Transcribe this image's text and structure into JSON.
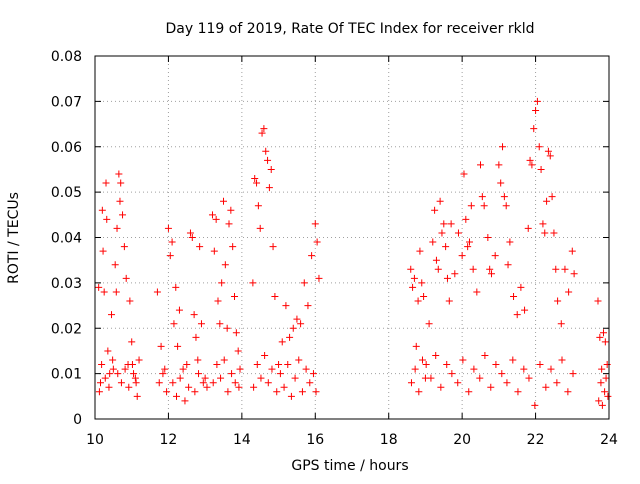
{
  "chart_data": {
    "type": "scatter",
    "title": "Day 119 of 2019, Rate Of TEC Index for receiver rkld",
    "xlabel": "GPS time / hours",
    "ylabel": "ROTI / TECUs",
    "xlim": [
      10,
      24
    ],
    "ylim": [
      0,
      0.08
    ],
    "x_ticks": [
      10,
      12,
      14,
      16,
      18,
      20,
      22,
      24
    ],
    "y_ticks": [
      0,
      0.01,
      0.02,
      0.03,
      0.04,
      0.05,
      0.06,
      0.07,
      0.08
    ],
    "x_tick_labels": [
      "10",
      "12",
      "14",
      "16",
      "18",
      "20",
      "22",
      "24"
    ],
    "y_tick_labels": [
      "0",
      "0.01",
      "0.02",
      "0.03",
      "0.04",
      "0.05",
      "0.06",
      "0.07",
      "0.08"
    ],
    "grid": true,
    "marker": "+",
    "series": [
      {
        "name": "ROTI",
        "color": "#ff0000",
        "points": [
          [
            10.1,
            0.029
          ],
          [
            10.15,
            0.008
          ],
          [
            10.2,
            0.046
          ],
          [
            10.22,
            0.037
          ],
          [
            10.25,
            0.028
          ],
          [
            10.3,
            0.052
          ],
          [
            10.32,
            0.044
          ],
          [
            10.35,
            0.015
          ],
          [
            10.4,
            0.01
          ],
          [
            10.45,
            0.023
          ],
          [
            10.5,
            0.011
          ],
          [
            10.55,
            0.034
          ],
          [
            10.58,
            0.028
          ],
          [
            10.6,
            0.042
          ],
          [
            10.65,
            0.054
          ],
          [
            10.68,
            0.048
          ],
          [
            10.7,
            0.052
          ],
          [
            10.75,
            0.045
          ],
          [
            10.8,
            0.038
          ],
          [
            10.85,
            0.031
          ],
          [
            10.9,
            0.012
          ],
          [
            10.95,
            0.026
          ],
          [
            11.0,
            0.017
          ],
          [
            11.05,
            0.01
          ],
          [
            11.1,
            0.009
          ],
          [
            11.15,
            0.005
          ],
          [
            11.2,
            0.013
          ],
          [
            10.12,
            0.006
          ],
          [
            10.18,
            0.012
          ],
          [
            10.28,
            0.009
          ],
          [
            10.38,
            0.007
          ],
          [
            10.48,
            0.013
          ],
          [
            10.62,
            0.01
          ],
          [
            10.72,
            0.008
          ],
          [
            10.82,
            0.011
          ],
          [
            10.92,
            0.007
          ],
          [
            11.02,
            0.012
          ],
          [
            11.12,
            0.008
          ],
          [
            11.7,
            0.028
          ],
          [
            11.8,
            0.016
          ],
          [
            11.9,
            0.011
          ],
          [
            12.0,
            0.042
          ],
          [
            12.05,
            0.036
          ],
          [
            12.1,
            0.039
          ],
          [
            12.15,
            0.021
          ],
          [
            12.2,
            0.029
          ],
          [
            12.25,
            0.016
          ],
          [
            12.3,
            0.024
          ],
          [
            12.4,
            0.011
          ],
          [
            12.5,
            0.012
          ],
          [
            12.6,
            0.041
          ],
          [
            12.65,
            0.04
          ],
          [
            12.7,
            0.023
          ],
          [
            12.75,
            0.018
          ],
          [
            12.8,
            0.013
          ],
          [
            12.85,
            0.038
          ],
          [
            12.9,
            0.021
          ],
          [
            13.0,
            0.009
          ],
          [
            13.05,
            0.007
          ],
          [
            11.75,
            0.008
          ],
          [
            11.85,
            0.01
          ],
          [
            11.95,
            0.006
          ],
          [
            12.12,
            0.008
          ],
          [
            12.22,
            0.005
          ],
          [
            12.32,
            0.009
          ],
          [
            12.45,
            0.004
          ],
          [
            12.55,
            0.007
          ],
          [
            12.72,
            0.006
          ],
          [
            12.82,
            0.01
          ],
          [
            12.95,
            0.008
          ],
          [
            13.2,
            0.045
          ],
          [
            13.25,
            0.037
          ],
          [
            13.3,
            0.044
          ],
          [
            13.35,
            0.026
          ],
          [
            13.4,
            0.021
          ],
          [
            13.45,
            0.03
          ],
          [
            13.5,
            0.048
          ],
          [
            13.55,
            0.034
          ],
          [
            13.6,
            0.02
          ],
          [
            13.65,
            0.043
          ],
          [
            13.7,
            0.046
          ],
          [
            13.75,
            0.038
          ],
          [
            13.8,
            0.027
          ],
          [
            13.85,
            0.019
          ],
          [
            13.9,
            0.015
          ],
          [
            13.95,
            0.011
          ],
          [
            13.22,
            0.008
          ],
          [
            13.32,
            0.012
          ],
          [
            13.42,
            0.009
          ],
          [
            13.52,
            0.013
          ],
          [
            13.62,
            0.006
          ],
          [
            13.72,
            0.01
          ],
          [
            13.82,
            0.008
          ],
          [
            13.92,
            0.007
          ],
          [
            14.3,
            0.03
          ],
          [
            14.35,
            0.053
          ],
          [
            14.4,
            0.052
          ],
          [
            14.45,
            0.047
          ],
          [
            14.5,
            0.042
          ],
          [
            14.55,
            0.063
          ],
          [
            14.6,
            0.064
          ],
          [
            14.65,
            0.059
          ],
          [
            14.7,
            0.057
          ],
          [
            14.75,
            0.051
          ],
          [
            14.8,
            0.055
          ],
          [
            14.85,
            0.038
          ],
          [
            14.9,
            0.027
          ],
          [
            15.0,
            0.012
          ],
          [
            15.1,
            0.017
          ],
          [
            15.2,
            0.025
          ],
          [
            15.3,
            0.018
          ],
          [
            15.4,
            0.02
          ],
          [
            15.5,
            0.022
          ],
          [
            15.6,
            0.021
          ],
          [
            15.7,
            0.03
          ],
          [
            15.8,
            0.025
          ],
          [
            15.9,
            0.036
          ],
          [
            16.0,
            0.043
          ],
          [
            16.05,
            0.039
          ],
          [
            16.1,
            0.031
          ],
          [
            14.32,
            0.007
          ],
          [
            14.42,
            0.012
          ],
          [
            14.52,
            0.009
          ],
          [
            14.62,
            0.014
          ],
          [
            14.72,
            0.008
          ],
          [
            14.82,
            0.011
          ],
          [
            14.95,
            0.006
          ],
          [
            15.05,
            0.01
          ],
          [
            15.15,
            0.007
          ],
          [
            15.25,
            0.012
          ],
          [
            15.35,
            0.005
          ],
          [
            15.45,
            0.009
          ],
          [
            15.55,
            0.013
          ],
          [
            15.65,
            0.006
          ],
          [
            15.75,
            0.011
          ],
          [
            15.85,
            0.008
          ],
          [
            15.95,
            0.01
          ],
          [
            16.02,
            0.006
          ],
          [
            18.6,
            0.033
          ],
          [
            18.65,
            0.029
          ],
          [
            18.7,
            0.031
          ],
          [
            18.75,
            0.016
          ],
          [
            18.8,
            0.026
          ],
          [
            18.85,
            0.037
          ],
          [
            18.9,
            0.03
          ],
          [
            18.95,
            0.027
          ],
          [
            19.0,
            0.009
          ],
          [
            19.1,
            0.021
          ],
          [
            19.2,
            0.039
          ],
          [
            19.25,
            0.046
          ],
          [
            19.3,
            0.035
          ],
          [
            19.35,
            0.033
          ],
          [
            19.4,
            0.048
          ],
          [
            19.45,
            0.041
          ],
          [
            19.5,
            0.043
          ],
          [
            19.55,
            0.038
          ],
          [
            19.6,
            0.031
          ],
          [
            19.65,
            0.026
          ],
          [
            19.7,
            0.043
          ],
          [
            19.8,
            0.032
          ],
          [
            19.9,
            0.041
          ],
          [
            20.0,
            0.036
          ],
          [
            20.05,
            0.054
          ],
          [
            20.1,
            0.044
          ],
          [
            20.15,
            0.038
          ],
          [
            20.2,
            0.039
          ],
          [
            20.25,
            0.047
          ],
          [
            20.3,
            0.033
          ],
          [
            20.4,
            0.028
          ],
          [
            20.5,
            0.056
          ],
          [
            20.55,
            0.049
          ],
          [
            20.6,
            0.047
          ],
          [
            20.7,
            0.04
          ],
          [
            20.75,
            0.033
          ],
          [
            20.8,
            0.032
          ],
          [
            20.9,
            0.036
          ],
          [
            21.0,
            0.056
          ],
          [
            21.05,
            0.052
          ],
          [
            21.1,
            0.06
          ],
          [
            21.15,
            0.049
          ],
          [
            21.2,
            0.047
          ],
          [
            21.25,
            0.034
          ],
          [
            21.3,
            0.039
          ],
          [
            21.4,
            0.027
          ],
          [
            21.5,
            0.023
          ],
          [
            21.6,
            0.029
          ],
          [
            21.7,
            0.024
          ],
          [
            21.8,
            0.042
          ],
          [
            21.85,
            0.057
          ],
          [
            21.9,
            0.056
          ],
          [
            21.95,
            0.064
          ],
          [
            22.0,
            0.068
          ],
          [
            22.05,
            0.07
          ],
          [
            22.1,
            0.06
          ],
          [
            22.15,
            0.055
          ],
          [
            22.2,
            0.043
          ],
          [
            22.25,
            0.041
          ],
          [
            22.3,
            0.048
          ],
          [
            22.35,
            0.059
          ],
          [
            22.4,
            0.058
          ],
          [
            22.45,
            0.049
          ],
          [
            22.5,
            0.041
          ],
          [
            22.55,
            0.033
          ],
          [
            22.6,
            0.026
          ],
          [
            22.7,
            0.021
          ],
          [
            22.8,
            0.033
          ],
          [
            22.9,
            0.028
          ],
          [
            23.0,
            0.037
          ],
          [
            23.05,
            0.032
          ],
          [
            18.62,
            0.008
          ],
          [
            18.72,
            0.011
          ],
          [
            18.82,
            0.006
          ],
          [
            18.92,
            0.013
          ],
          [
            19.02,
            0.012
          ],
          [
            19.15,
            0.009
          ],
          [
            19.28,
            0.014
          ],
          [
            19.42,
            0.007
          ],
          [
            19.58,
            0.012
          ],
          [
            19.72,
            0.01
          ],
          [
            19.88,
            0.008
          ],
          [
            20.02,
            0.013
          ],
          [
            20.18,
            0.006
          ],
          [
            20.32,
            0.011
          ],
          [
            20.48,
            0.009
          ],
          [
            20.62,
            0.014
          ],
          [
            20.78,
            0.007
          ],
          [
            20.92,
            0.012
          ],
          [
            21.08,
            0.01
          ],
          [
            21.22,
            0.008
          ],
          [
            21.38,
            0.013
          ],
          [
            21.52,
            0.006
          ],
          [
            21.68,
            0.011
          ],
          [
            21.82,
            0.009
          ],
          [
            21.98,
            0.003
          ],
          [
            22.12,
            0.012
          ],
          [
            22.28,
            0.007
          ],
          [
            22.42,
            0.011
          ],
          [
            22.58,
            0.008
          ],
          [
            22.72,
            0.013
          ],
          [
            22.88,
            0.006
          ],
          [
            23.02,
            0.01
          ],
          [
            23.7,
            0.026
          ],
          [
            23.75,
            0.018
          ],
          [
            23.8,
            0.011
          ],
          [
            23.85,
            0.019
          ],
          [
            23.9,
            0.017
          ],
          [
            23.95,
            0.012
          ],
          [
            23.72,
            0.004
          ],
          [
            23.78,
            0.008
          ],
          [
            23.82,
            0.003
          ],
          [
            23.88,
            0.006
          ],
          [
            23.92,
            0.009
          ],
          [
            23.97,
            0.005
          ]
        ]
      }
    ]
  }
}
